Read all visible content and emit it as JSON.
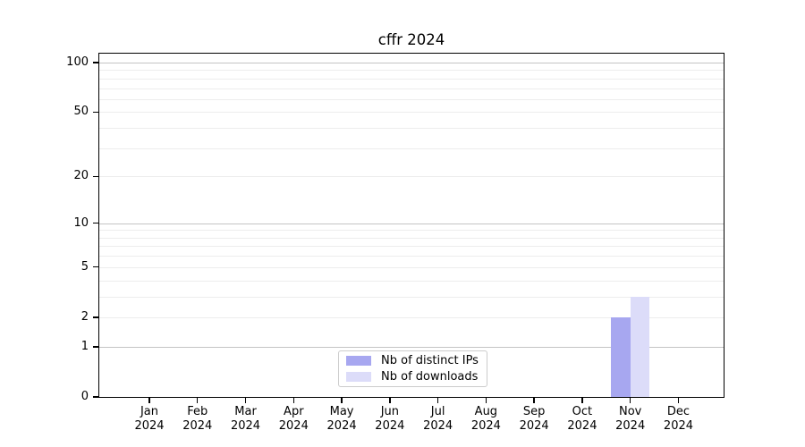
{
  "title": "cffr 2024",
  "chart_data": {
    "type": "bar",
    "title": "cffr 2024",
    "categories": [
      "Jan 2024",
      "Feb 2024",
      "Mar 2024",
      "Apr 2024",
      "May 2024",
      "Jun 2024",
      "Jul 2024",
      "Aug 2024",
      "Sep 2024",
      "Oct 2024",
      "Nov 2024",
      "Dec 2024"
    ],
    "series": [
      {
        "name": "Nb of distinct IPs",
        "color": "#a7a7f0",
        "values": [
          0,
          0,
          0,
          0,
          0,
          0,
          0,
          0,
          0,
          0,
          2,
          0
        ]
      },
      {
        "name": "Nb of downloads",
        "color": "#dcdcf9",
        "values": [
          0,
          0,
          0,
          0,
          0,
          0,
          0,
          0,
          0,
          0,
          3,
          0
        ]
      }
    ],
    "yscale": "log1p",
    "ylim": [
      0,
      110
    ],
    "y_ticks": [
      0,
      1,
      2,
      5,
      10,
      20,
      50,
      100
    ],
    "y_major_gridlines": [
      1,
      10,
      100
    ],
    "y_minor_gridlines": [
      2,
      3,
      4,
      5,
      6,
      7,
      8,
      9,
      20,
      30,
      40,
      50,
      60,
      70,
      80,
      90
    ],
    "grid": true,
    "legend_position": "lower center",
    "xlabel": "",
    "ylabel": ""
  },
  "colors": {
    "bar_distinct_ips": "#a7a7f0",
    "bar_downloads": "#dcdcf9",
    "major_grid": "#c4c4c4",
    "minor_grid": "#ededed",
    "axis": "#000000",
    "text": "#000000",
    "legend_border": "#cccccc"
  },
  "legend": {
    "entries": [
      {
        "label": "Nb of distinct IPs"
      },
      {
        "label": "Nb of downloads"
      }
    ]
  }
}
